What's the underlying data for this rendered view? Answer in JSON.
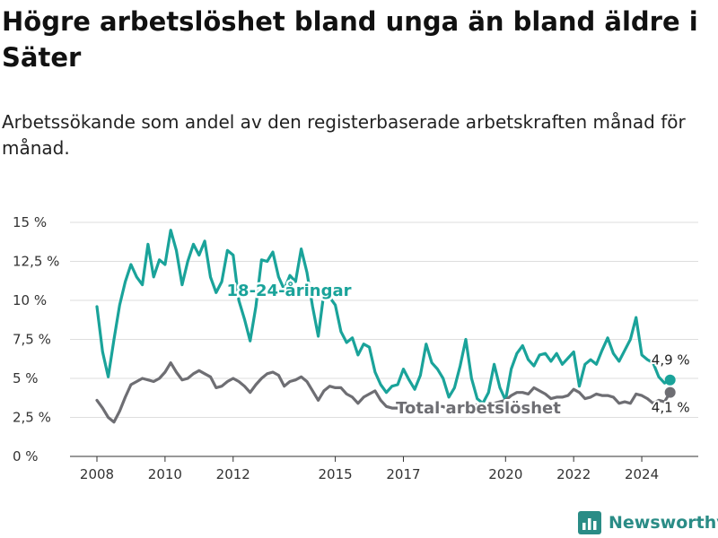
{
  "header": {
    "title": "Högre arbetslöshet bland unga än bland äldre i Säter",
    "subtitle": "Arbetssökande som andel av den registerbaserade arbetskraften månad för månad."
  },
  "brand": {
    "name": "Newsworthy",
    "icon": "bar-chart-logo-icon",
    "color": "#2a8c86"
  },
  "chart_data": {
    "type": "line",
    "title": "Högre arbetslöshet bland unga än bland äldre i Säter",
    "subtitle": "Arbetssökande som andel av den registerbaserade arbetskraften månad för månad.",
    "x_ticks": [
      "2008",
      "2010",
      "2012",
      "2015",
      "2017",
      "2020",
      "2022",
      "2024"
    ],
    "y_ticks": [
      "0 %",
      "2,5 %",
      "5 %",
      "7,5 %",
      "10 %",
      "12,5 %",
      "15 %"
    ],
    "ylim": [
      0,
      15
    ],
    "xlim": [
      "2008-01",
      "2025-01"
    ],
    "grid": true,
    "series": [
      {
        "name": "18-24-åringar",
        "color": "#1aa39a",
        "end_label": "4,9 %",
        "points": [
          [
            "2008-01",
            9.6
          ],
          [
            "2008-03",
            6.7
          ],
          [
            "2008-05",
            5.1
          ],
          [
            "2008-07",
            7.5
          ],
          [
            "2008-09",
            9.7
          ],
          [
            "2008-11",
            11.2
          ],
          [
            "2009-01",
            12.3
          ],
          [
            "2009-03",
            11.5
          ],
          [
            "2009-05",
            11.0
          ],
          [
            "2009-07",
            13.6
          ],
          [
            "2009-09",
            11.5
          ],
          [
            "2009-11",
            12.6
          ],
          [
            "2010-01",
            12.3
          ],
          [
            "2010-03",
            14.5
          ],
          [
            "2010-05",
            13.2
          ],
          [
            "2010-07",
            11.0
          ],
          [
            "2010-09",
            12.5
          ],
          [
            "2010-11",
            13.6
          ],
          [
            "2011-01",
            12.9
          ],
          [
            "2011-03",
            13.8
          ],
          [
            "2011-05",
            11.5
          ],
          [
            "2011-07",
            10.5
          ],
          [
            "2011-09",
            11.2
          ],
          [
            "2011-11",
            13.2
          ],
          [
            "2012-01",
            12.9
          ],
          [
            "2012-03",
            10.0
          ],
          [
            "2012-05",
            8.8
          ],
          [
            "2012-07",
            7.4
          ],
          [
            "2012-09",
            9.6
          ],
          [
            "2012-11",
            12.6
          ],
          [
            "2013-01",
            12.5
          ],
          [
            "2013-03",
            13.1
          ],
          [
            "2013-05",
            11.5
          ],
          [
            "2013-07",
            10.7
          ],
          [
            "2013-09",
            11.6
          ],
          [
            "2013-11",
            11.2
          ],
          [
            "2014-01",
            13.3
          ],
          [
            "2014-03",
            11.8
          ],
          [
            "2014-05",
            9.6
          ],
          [
            "2014-07",
            7.7
          ],
          [
            "2014-09",
            10.5
          ],
          [
            "2014-11",
            10.2
          ],
          [
            "2015-01",
            9.7
          ],
          [
            "2015-03",
            8.0
          ],
          [
            "2015-05",
            7.3
          ],
          [
            "2015-07",
            7.6
          ],
          [
            "2015-09",
            6.5
          ],
          [
            "2015-11",
            7.2
          ],
          [
            "2016-01",
            7.0
          ],
          [
            "2016-03",
            5.4
          ],
          [
            "2016-05",
            4.6
          ],
          [
            "2016-07",
            4.1
          ],
          [
            "2016-09",
            4.5
          ],
          [
            "2016-11",
            4.6
          ],
          [
            "2017-01",
            5.6
          ],
          [
            "2017-03",
            4.9
          ],
          [
            "2017-05",
            4.3
          ],
          [
            "2017-07",
            5.2
          ],
          [
            "2017-09",
            7.2
          ],
          [
            "2017-11",
            6.0
          ],
          [
            "2018-01",
            5.6
          ],
          [
            "2018-03",
            5.0
          ],
          [
            "2018-05",
            3.8
          ],
          [
            "2018-07",
            4.4
          ],
          [
            "2018-09",
            5.8
          ],
          [
            "2018-11",
            7.5
          ],
          [
            "2019-01",
            5.0
          ],
          [
            "2019-03",
            3.7
          ],
          [
            "2019-05",
            3.4
          ],
          [
            "2019-07",
            4.1
          ],
          [
            "2019-09",
            5.9
          ],
          [
            "2019-11",
            4.4
          ],
          [
            "2020-01",
            3.6
          ],
          [
            "2020-03",
            5.6
          ],
          [
            "2020-05",
            6.6
          ],
          [
            "2020-07",
            7.1
          ],
          [
            "2020-09",
            6.2
          ],
          [
            "2020-11",
            5.8
          ],
          [
            "2021-01",
            6.5
          ],
          [
            "2021-03",
            6.6
          ],
          [
            "2021-05",
            6.1
          ],
          [
            "2021-07",
            6.6
          ],
          [
            "2021-09",
            5.9
          ],
          [
            "2021-11",
            6.3
          ],
          [
            "2022-01",
            6.7
          ],
          [
            "2022-03",
            4.5
          ],
          [
            "2022-05",
            5.9
          ],
          [
            "2022-07",
            6.2
          ],
          [
            "2022-09",
            5.9
          ],
          [
            "2022-11",
            6.8
          ],
          [
            "2023-01",
            7.6
          ],
          [
            "2023-03",
            6.6
          ],
          [
            "2023-05",
            6.1
          ],
          [
            "2023-07",
            6.8
          ],
          [
            "2023-09",
            7.5
          ],
          [
            "2023-11",
            8.9
          ],
          [
            "2024-01",
            6.5
          ],
          [
            "2024-03",
            6.2
          ],
          [
            "2024-05",
            6.0
          ],
          [
            "2024-07",
            5.1
          ],
          [
            "2024-09",
            4.7
          ],
          [
            "2024-11",
            4.9
          ]
        ]
      },
      {
        "name": "Total arbetslöshet",
        "color": "#6e6e73",
        "end_label": "4,1 %",
        "points": [
          [
            "2008-01",
            3.6
          ],
          [
            "2008-03",
            3.1
          ],
          [
            "2008-05",
            2.5
          ],
          [
            "2008-07",
            2.2
          ],
          [
            "2008-09",
            2.9
          ],
          [
            "2008-11",
            3.8
          ],
          [
            "2009-01",
            4.6
          ],
          [
            "2009-03",
            4.8
          ],
          [
            "2009-05",
            5.0
          ],
          [
            "2009-07",
            4.9
          ],
          [
            "2009-09",
            4.8
          ],
          [
            "2009-11",
            5.0
          ],
          [
            "2010-01",
            5.4
          ],
          [
            "2010-03",
            6.0
          ],
          [
            "2010-05",
            5.4
          ],
          [
            "2010-07",
            4.9
          ],
          [
            "2010-09",
            5.0
          ],
          [
            "2010-11",
            5.3
          ],
          [
            "2011-01",
            5.5
          ],
          [
            "2011-03",
            5.3
          ],
          [
            "2011-05",
            5.1
          ],
          [
            "2011-07",
            4.4
          ],
          [
            "2011-09",
            4.5
          ],
          [
            "2011-11",
            4.8
          ],
          [
            "2012-01",
            5.0
          ],
          [
            "2012-03",
            4.8
          ],
          [
            "2012-05",
            4.5
          ],
          [
            "2012-07",
            4.1
          ],
          [
            "2012-09",
            4.6
          ],
          [
            "2012-11",
            5.0
          ],
          [
            "2013-01",
            5.3
          ],
          [
            "2013-03",
            5.4
          ],
          [
            "2013-05",
            5.2
          ],
          [
            "2013-07",
            4.5
          ],
          [
            "2013-09",
            4.8
          ],
          [
            "2013-11",
            4.9
          ],
          [
            "2014-01",
            5.1
          ],
          [
            "2014-03",
            4.8
          ],
          [
            "2014-05",
            4.2
          ],
          [
            "2014-07",
            3.6
          ],
          [
            "2014-09",
            4.2
          ],
          [
            "2014-11",
            4.5
          ],
          [
            "2015-01",
            4.4
          ],
          [
            "2015-03",
            4.4
          ],
          [
            "2015-05",
            4.0
          ],
          [
            "2015-07",
            3.8
          ],
          [
            "2015-09",
            3.4
          ],
          [
            "2015-11",
            3.8
          ],
          [
            "2016-01",
            4.0
          ],
          [
            "2016-03",
            4.2
          ],
          [
            "2016-05",
            3.6
          ],
          [
            "2016-07",
            3.2
          ],
          [
            "2016-09",
            3.1
          ],
          [
            "2016-11",
            3.1
          ],
          [
            "2017-01",
            3.2
          ],
          [
            "2017-03",
            3.1
          ],
          [
            "2017-05",
            3.0
          ],
          [
            "2017-07",
            3.1
          ],
          [
            "2017-09",
            3.3
          ],
          [
            "2017-11",
            3.2
          ],
          [
            "2018-01",
            3.2
          ],
          [
            "2018-03",
            3.2
          ],
          [
            "2018-05",
            3.0
          ],
          [
            "2018-07",
            3.1
          ],
          [
            "2018-09",
            3.2
          ],
          [
            "2018-11",
            3.3
          ],
          [
            "2019-01",
            3.3
          ],
          [
            "2019-03",
            3.3
          ],
          [
            "2019-05",
            3.2
          ],
          [
            "2019-07",
            3.2
          ],
          [
            "2019-09",
            3.4
          ],
          [
            "2019-11",
            3.5
          ],
          [
            "2020-01",
            3.6
          ],
          [
            "2020-03",
            3.9
          ],
          [
            "2020-05",
            4.1
          ],
          [
            "2020-07",
            4.1
          ],
          [
            "2020-09",
            4.0
          ],
          [
            "2020-11",
            4.4
          ],
          [
            "2021-01",
            4.2
          ],
          [
            "2021-03",
            4.0
          ],
          [
            "2021-05",
            3.7
          ],
          [
            "2021-07",
            3.8
          ],
          [
            "2021-09",
            3.8
          ],
          [
            "2021-11",
            3.9
          ],
          [
            "2022-01",
            4.3
          ],
          [
            "2022-03",
            4.1
          ],
          [
            "2022-05",
            3.7
          ],
          [
            "2022-07",
            3.8
          ],
          [
            "2022-09",
            4.0
          ],
          [
            "2022-11",
            3.9
          ],
          [
            "2023-01",
            3.9
          ],
          [
            "2023-03",
            3.8
          ],
          [
            "2023-05",
            3.4
          ],
          [
            "2023-07",
            3.5
          ],
          [
            "2023-09",
            3.4
          ],
          [
            "2023-11",
            4.0
          ],
          [
            "2024-01",
            3.9
          ],
          [
            "2024-03",
            3.7
          ],
          [
            "2024-05",
            3.4
          ],
          [
            "2024-07",
            3.6
          ],
          [
            "2024-09",
            3.5
          ],
          [
            "2024-11",
            4.1
          ]
        ]
      }
    ]
  }
}
